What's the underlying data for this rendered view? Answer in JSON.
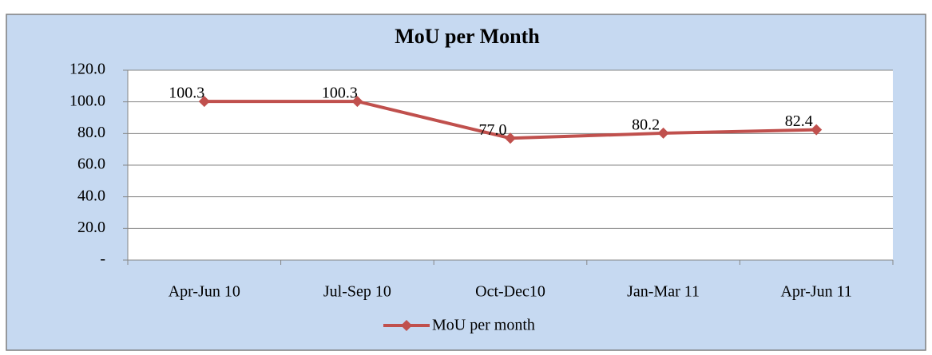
{
  "chart_data": {
    "type": "line",
    "title": "MoU per Month",
    "categories": [
      "Apr-Jun 10",
      "Jul-Sep 10",
      "Oct-Dec10",
      "Jan-Mar 11",
      "Apr-Jun 11"
    ],
    "series": [
      {
        "name": "MoU per month",
        "color": "#c0504d",
        "values": [
          100.3,
          100.3,
          77.0,
          80.2,
          82.4
        ],
        "value_labels": [
          "100.3",
          "100.3",
          "77.0",
          "80.2",
          "82.4"
        ]
      }
    ],
    "ylim": [
      0,
      120
    ],
    "yticks": [
      {
        "value": 0,
        "label": "-"
      },
      {
        "value": 20,
        "label": "20.0"
      },
      {
        "value": 40,
        "label": "40.0"
      },
      {
        "value": 60,
        "label": "60.0"
      },
      {
        "value": 80,
        "label": "80.0"
      },
      {
        "value": 100,
        "label": "100.0"
      },
      {
        "value": 120,
        "label": "120.0"
      }
    ],
    "grid": true,
    "legend": "bottom"
  }
}
